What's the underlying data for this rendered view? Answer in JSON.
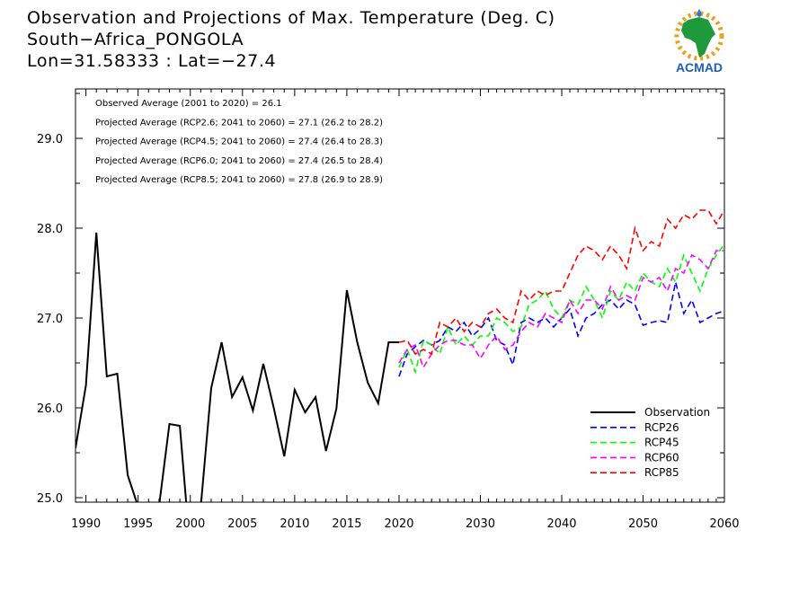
{
  "header": {
    "title_line1": "Observation and Projections of Max. Temperature (Deg. C)",
    "title_line2": "South−Africa_PONGOLA",
    "title_line3": "Lon=31.58333 : Lat=−27.4"
  },
  "logo": {
    "text": "ACMAD",
    "icon": "africa-map-sun-logo"
  },
  "annotations": [
    "Observed Average (2001 to 2020) = 26.1",
    "Projected Average (RCP2.6; 2041 to 2060) = 27.1 (26.2 to 28.2)",
    "Projected Average (RCP4.5; 2041 to 2060) = 27.4 (26.4 to 28.3)",
    "Projected Average (RCP6.0; 2041 to 2060) = 27.4 (26.5 to 28.4)",
    "Projected Average (RCP8.5; 2041 to 2060) = 27.8 (26.9 to 28.9)"
  ],
  "chart_data": {
    "type": "line",
    "title": "Observation and Projections of Max. Temperature (Deg. C)",
    "xlabel": "",
    "ylabel": "",
    "grid": false,
    "legend_position": "bottom-right",
    "xlim": [
      1989,
      2060
    ],
    "ylim": [
      24.95,
      29.55
    ],
    "x_ticks": [
      1990,
      1995,
      2000,
      2005,
      2010,
      2015,
      2020,
      2030,
      2040,
      2050,
      2060
    ],
    "y_ticks": [
      25.0,
      26.0,
      27.0,
      28.0,
      29.0
    ],
    "series": [
      {
        "name": "Observation",
        "color": "#000000",
        "dashed": false,
        "x": [
          1989,
          1990,
          1991,
          1992,
          1993,
          1994,
          1995,
          1996,
          1997,
          1998,
          1999,
          2000,
          2001,
          2002,
          2003,
          2004,
          2005,
          2006,
          2007,
          2008,
          2009,
          2010,
          2011,
          2012,
          2013,
          2014,
          2015,
          2016,
          2017,
          2018,
          2019,
          2020
        ],
        "values": [
          25.55,
          26.25,
          27.95,
          26.35,
          26.38,
          25.25,
          24.9,
          24.4,
          24.9,
          25.82,
          25.8,
          24.4,
          24.9,
          26.22,
          26.73,
          26.12,
          26.34,
          25.97,
          26.49,
          26.0,
          25.46,
          26.2,
          25.95,
          26.12,
          25.52,
          25.99,
          27.31,
          26.73,
          26.28,
          26.05,
          26.73,
          26.73
        ]
      },
      {
        "name": "RCP26",
        "color": "#0000ff",
        "dashed": true,
        "x": [
          2020,
          2021,
          2022,
          2023,
          2024,
          2025,
          2026,
          2027,
          2028,
          2029,
          2030,
          2031,
          2032,
          2033,
          2034,
          2035,
          2036,
          2037,
          2038,
          2039,
          2040,
          2041,
          2042,
          2043,
          2044,
          2045,
          2046,
          2047,
          2048,
          2049,
          2050,
          2051,
          2052,
          2053,
          2054,
          2055,
          2056,
          2057,
          2058,
          2059,
          2060
        ],
        "values": [
          26.35,
          26.6,
          26.68,
          26.75,
          26.7,
          26.75,
          26.9,
          26.85,
          26.95,
          26.8,
          26.88,
          27.0,
          26.75,
          26.7,
          26.48,
          26.95,
          27.0,
          26.95,
          27.0,
          26.9,
          27.0,
          27.1,
          26.8,
          27.0,
          27.05,
          27.15,
          27.2,
          27.1,
          27.2,
          27.15,
          26.92,
          26.95,
          26.97,
          26.95,
          27.4,
          27.05,
          27.2,
          26.95,
          27.0,
          27.05,
          27.08
        ]
      },
      {
        "name": "RCP45",
        "color": "#00ff00",
        "dashed": true,
        "x": [
          2020,
          2021,
          2022,
          2023,
          2024,
          2025,
          2026,
          2027,
          2028,
          2029,
          2030,
          2031,
          2032,
          2033,
          2034,
          2035,
          2036,
          2037,
          2038,
          2039,
          2040,
          2041,
          2042,
          2043,
          2044,
          2045,
          2046,
          2047,
          2048,
          2049,
          2050,
          2051,
          2052,
          2053,
          2054,
          2055,
          2056,
          2057,
          2058,
          2059,
          2060
        ],
        "values": [
          26.45,
          26.65,
          26.4,
          26.75,
          26.7,
          26.6,
          26.9,
          26.7,
          26.8,
          26.7,
          26.8,
          26.8,
          27.0,
          26.95,
          26.85,
          26.9,
          27.15,
          27.2,
          27.3,
          27.1,
          27.0,
          27.2,
          27.15,
          27.35,
          27.2,
          27.0,
          27.3,
          27.2,
          27.4,
          27.3,
          27.5,
          27.4,
          27.35,
          27.55,
          27.4,
          27.7,
          27.5,
          27.3,
          27.55,
          27.7,
          27.82
        ]
      },
      {
        "name": "RCP60",
        "color": "#ff00ff",
        "dashed": true,
        "x": [
          2020,
          2021,
          2022,
          2023,
          2024,
          2025,
          2026,
          2027,
          2028,
          2029,
          2030,
          2031,
          2032,
          2033,
          2034,
          2035,
          2036,
          2037,
          2038,
          2039,
          2040,
          2041,
          2042,
          2043,
          2044,
          2045,
          2046,
          2047,
          2048,
          2049,
          2050,
          2051,
          2052,
          2053,
          2054,
          2055,
          2056,
          2057,
          2058,
          2059,
          2060
        ],
        "values": [
          26.5,
          26.65,
          26.7,
          26.45,
          26.6,
          26.7,
          26.75,
          26.75,
          26.7,
          26.7,
          26.55,
          26.7,
          26.8,
          26.65,
          26.7,
          26.85,
          26.95,
          26.9,
          27.05,
          27.0,
          26.95,
          27.2,
          27.05,
          27.2,
          27.2,
          27.1,
          27.35,
          27.2,
          27.25,
          27.2,
          27.45,
          27.4,
          27.45,
          27.3,
          27.55,
          27.5,
          27.7,
          27.65,
          27.55,
          27.75,
          27.75
        ]
      },
      {
        "name": "RCP85",
        "color": "#ff0000",
        "dashed": true,
        "x": [
          2020,
          2021,
          2022,
          2023,
          2024,
          2025,
          2026,
          2027,
          2028,
          2029,
          2030,
          2031,
          2032,
          2033,
          2034,
          2035,
          2036,
          2037,
          2038,
          2039,
          2040,
          2041,
          2042,
          2043,
          2044,
          2045,
          2046,
          2047,
          2048,
          2049,
          2050,
          2051,
          2052,
          2053,
          2054,
          2055,
          2056,
          2057,
          2058,
          2059,
          2060
        ],
        "values": [
          26.73,
          26.75,
          26.6,
          26.65,
          26.6,
          26.95,
          26.9,
          27.0,
          26.85,
          26.95,
          26.9,
          27.05,
          27.1,
          27.0,
          26.95,
          27.3,
          27.2,
          27.3,
          27.25,
          27.3,
          27.3,
          27.5,
          27.7,
          27.8,
          27.75,
          27.65,
          27.8,
          27.7,
          27.55,
          28.0,
          27.75,
          27.85,
          27.8,
          28.1,
          28.0,
          28.15,
          28.1,
          28.2,
          28.2,
          28.05,
          28.2
        ]
      }
    ],
    "legend": [
      "Observation",
      "RCP26",
      "RCP45",
      "RCP60",
      "RCP85"
    ]
  }
}
